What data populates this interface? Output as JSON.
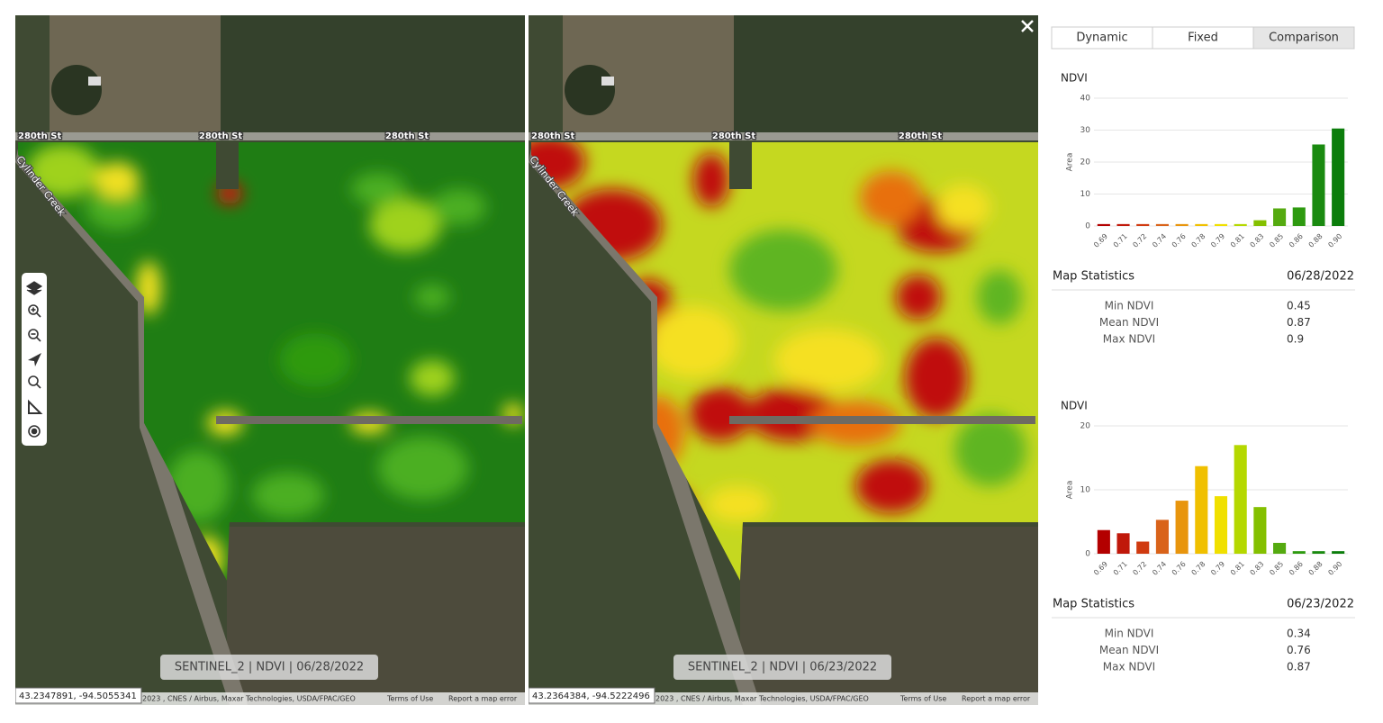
{
  "tabs": [
    "Dynamic",
    "Fixed",
    "Comparison"
  ],
  "maps": [
    {
      "road_labels": [
        "280th St",
        "280th St",
        "280th St"
      ],
      "creek_label": "Cylinder Creek",
      "caption": "SENTINEL_2  |  NDVI  |  06/28/2022",
      "coordinates": "43.2347891, -94.5055341",
      "attribution": "2023 , CNES / Airbus, Maxar Technologies, USDA/FPAC/GEO",
      "terms": "Terms of Use",
      "report": "Report a map error"
    },
    {
      "road_labels": [
        "280th St",
        "280th St",
        "280th St"
      ],
      "creek_label": "Cylinder Creek",
      "caption": "SENTINEL_2  |  NDVI  |  06/23/2022",
      "coordinates": "43.2364384, -94.5222496",
      "attribution": "2023 , CNES / Airbus, Maxar Technologies, USDA/FPAC/GEO",
      "terms": "Terms of Use",
      "report": "Report a map error"
    }
  ],
  "chart_data": [
    {
      "type": "bar",
      "title": "NDVI",
      "y_label": "Area",
      "categories": [
        "0.69",
        "0.71",
        "0.72",
        "0.74",
        "0.76",
        "0.78",
        "0.79",
        "0.81",
        "0.83",
        "0.85",
        "0.86",
        "0.88",
        "0.90"
      ],
      "values": [
        0.6,
        0.6,
        0.6,
        0.6,
        0.6,
        0.6,
        0.6,
        0.6,
        1.8,
        5.5,
        5.8,
        25.5,
        30.5
      ],
      "colors": [
        "#b30000",
        "#c0180a",
        "#d03a10",
        "#d9631a",
        "#e8950d",
        "#f0c000",
        "#f0e000",
        "#b5d800",
        "#84c000",
        "#55aa10",
        "#2e9a10",
        "#1a8a10",
        "#0b7d0b"
      ],
      "ylim": [
        0,
        40
      ],
      "yticks": [
        0,
        10,
        20,
        30,
        40
      ],
      "grid": true
    },
    {
      "type": "bar",
      "title": "NDVI",
      "y_label": "Area",
      "categories": [
        "0.69",
        "0.71",
        "0.72",
        "0.74",
        "0.76",
        "0.78",
        "0.79",
        "0.81",
        "0.83",
        "0.85",
        "0.86",
        "0.88",
        "0.90"
      ],
      "values": [
        3.7,
        3.2,
        1.9,
        5.3,
        8.3,
        13.7,
        9.0,
        17.0,
        7.3,
        1.7,
        0.4,
        0.4,
        0.4
      ],
      "colors": [
        "#b30000",
        "#c0180a",
        "#d03a10",
        "#d9631a",
        "#e8950d",
        "#f0c000",
        "#f0e000",
        "#b5d800",
        "#84c000",
        "#55aa10",
        "#2e9a10",
        "#1a8a10",
        "#0b7d0b"
      ],
      "ylim": [
        0,
        20
      ],
      "yticks": [
        0,
        10,
        20
      ],
      "grid": true
    }
  ],
  "statistics": [
    {
      "title": "Map Statistics",
      "date": "06/28/2022",
      "rows": [
        {
          "label": "Min NDVI",
          "value": 0.45
        },
        {
          "label": "Mean NDVI",
          "value": 0.87
        },
        {
          "label": "Max NDVI",
          "value": 0.9
        }
      ]
    },
    {
      "title": "Map Statistics",
      "date": "06/23/2022",
      "rows": [
        {
          "label": "Min NDVI",
          "value": 0.34
        },
        {
          "label": "Mean NDVI",
          "value": 0.76
        },
        {
          "label": "Max NDVI",
          "value": 0.87
        }
      ]
    }
  ]
}
